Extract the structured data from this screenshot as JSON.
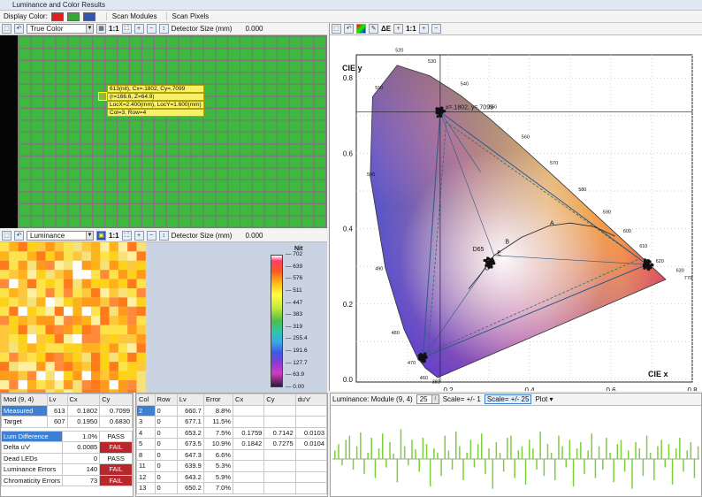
{
  "window": {
    "title": "Luminance and Color Results"
  },
  "menubar": {
    "display_color_label": "Display Color:",
    "swatches": [
      "#e02020",
      "#33a833",
      "#3355b0"
    ],
    "scan_modules": "Scan Modules",
    "scan_pixels": "Scan Pixels"
  },
  "top_view": {
    "mode": "True Color",
    "zoom": "1:1",
    "detector_label": "Detector Size (mm)",
    "detector_value": "0.000",
    "tooltip": [
      "613(nit), Cx=.1802, Cy=.7099",
      "(r=166.6, Z=64.9)",
      "LocX=2.400(mm), LocY=1.600(mm)",
      "Col=3, Row=4"
    ]
  },
  "bottom_view": {
    "mode": "Luminance",
    "zoom": "1:1",
    "detector_label": "Detector Size (mm)",
    "detector_value": "0.000",
    "colorbar_unit": "Nit",
    "colorbar_ticks": [
      "702",
      "639",
      "576",
      "511",
      "447",
      "383",
      "319",
      "255.4",
      "191.6",
      "127.7",
      "63.9",
      "0.00"
    ]
  },
  "cie_toolbar": {
    "delta_e": "ΔE",
    "zoom": "1:1"
  },
  "cie": {
    "y_title": "CIE y",
    "x_title": "CIE x",
    "y_ticks": [
      "0.0",
      "0.2",
      "0.4",
      "0.6",
      "0.8"
    ],
    "x_ticks": [
      "0.2",
      "0.4",
      "0.6",
      "0.8"
    ],
    "wavelengths": [
      "520",
      "510",
      "530",
      "540",
      "550",
      "560",
      "570",
      "580",
      "590",
      "600",
      "610",
      "620",
      "630",
      "770",
      "500",
      "490",
      "480",
      "470",
      "460",
      "380"
    ],
    "cursor_readout": "x=.1802, y=.7099",
    "blackbody_labels": [
      "A",
      "B",
      "E",
      "C",
      "D65"
    ]
  },
  "results": {
    "header": [
      "Mod (9, 4)",
      "Lv",
      "Cx",
      "Cy"
    ],
    "rows": [
      {
        "label": "Measured",
        "lv": "613",
        "cx": "0.1802",
        "cy": "0.7099"
      },
      {
        "label": "Target",
        "lv": "607",
        "cx": "0.1950",
        "cy": "0.6830"
      }
    ],
    "checks": [
      {
        "label": "Lum Difference",
        "value": "1.0%",
        "status": "PASS"
      },
      {
        "label": "Delta u'v'",
        "value": "0.0085",
        "status": "FAIL"
      },
      {
        "label": "Dead LEDs",
        "value": "0",
        "status": "PASS"
      },
      {
        "label": "Luminance Errors",
        "value": "140",
        "status": "FAIL"
      },
      {
        "label": "Chromaticity Errors",
        "value": "73",
        "status": "FAIL"
      }
    ]
  },
  "errors_table": {
    "header": [
      "Col",
      "Row",
      "Lv",
      "Error",
      "Cx",
      "Cy",
      "du'v'"
    ],
    "rows": [
      [
        "2",
        "0",
        "660.7",
        "8.8%",
        "",
        "",
        ""
      ],
      [
        "3",
        "0",
        "677.1",
        "11.5%",
        "",
        "",
        ""
      ],
      [
        "4",
        "0",
        "653.2",
        "7.5%",
        "0.1759",
        "0.7142",
        "0.0103"
      ],
      [
        "5",
        "0",
        "673.5",
        "10.9%",
        "0.1842",
        "0.7275",
        "0.0104"
      ],
      [
        "8",
        "0",
        "647.3",
        "6.6%",
        "",
        "",
        ""
      ],
      [
        "11",
        "0",
        "639.9",
        "5.3%",
        "",
        "",
        ""
      ],
      [
        "12",
        "0",
        "643.2",
        "5.9%",
        "",
        "",
        ""
      ],
      [
        "13",
        "0",
        "650.2",
        "7.0%",
        "",
        "",
        ""
      ]
    ]
  },
  "plot_toolbar": {
    "label": "Luminance: Module (9, 4)",
    "count": "25",
    "scale1": "Scale= +/- 1",
    "scale2": "Scale= +/- 25",
    "plot_menu": "Plot"
  },
  "deviation_plot": {
    "values": [
      8,
      14,
      -6,
      18,
      22,
      -10,
      12,
      25,
      -14,
      6,
      20,
      -18,
      10,
      24,
      -8,
      16,
      5,
      -22,
      28,
      12,
      -6,
      18,
      9,
      -12,
      20,
      14,
      -26,
      10,
      6,
      -16,
      22,
      8,
      -10,
      26,
      12,
      -20,
      6,
      18,
      -8,
      14,
      24,
      -14,
      10,
      -28,
      16,
      6,
      -12,
      20,
      22,
      -18,
      8,
      12,
      -24,
      18,
      10,
      -10,
      26,
      -16,
      14,
      6,
      -20,
      22,
      12,
      -8,
      18,
      -26,
      10,
      16,
      -14,
      8,
      24,
      -18,
      12,
      -10,
      20,
      6,
      -22,
      14,
      18,
      -12,
      8,
      -28,
      16,
      10,
      -16,
      22,
      6,
      -20,
      12,
      18,
      -8,
      14,
      -24,
      10,
      20,
      -12,
      8,
      16,
      -18,
      12
    ]
  }
}
